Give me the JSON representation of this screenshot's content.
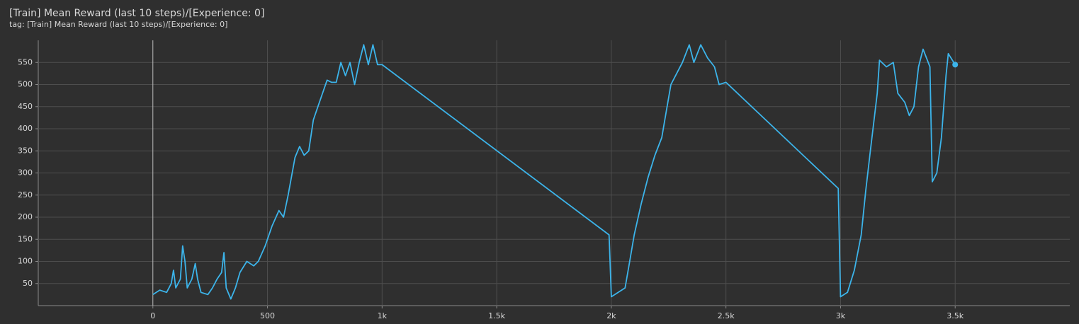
{
  "chart_data": {
    "type": "line",
    "title": "[Train] Mean Reward (last 10 steps)/[Experience: 0]",
    "subtitle": "tag: [Train] Mean Reward (last 10 steps)/[Experience: 0]",
    "color": "#3cb4ea",
    "x": [
      0,
      30,
      60,
      80,
      90,
      100,
      120,
      130,
      140,
      150,
      170,
      185,
      195,
      210,
      240,
      260,
      280,
      300,
      310,
      320,
      340,
      360,
      380,
      410,
      440,
      460,
      490,
      520,
      550,
      570,
      590,
      620,
      640,
      660,
      680,
      700,
      720,
      740,
      760,
      780,
      800,
      820,
      840,
      860,
      880,
      900,
      920,
      940,
      960,
      980,
      1000,
      1990,
      2000,
      2030,
      2060,
      2080,
      2100,
      2130,
      2160,
      2190,
      2220,
      2240,
      2260,
      2290,
      2310,
      2340,
      2360,
      2390,
      2420,
      2450,
      2470,
      2500,
      2990,
      3000,
      3030,
      3060,
      3090,
      3110,
      3130,
      3160,
      3170,
      3200,
      3230,
      3250,
      3280,
      3300,
      3320,
      3340,
      3360,
      3390,
      3400,
      3420,
      3440,
      3460,
      3470,
      3500
    ],
    "values": [
      25,
      35,
      30,
      50,
      80,
      40,
      60,
      135,
      100,
      40,
      60,
      95,
      60,
      30,
      25,
      40,
      60,
      75,
      120,
      40,
      15,
      40,
      75,
      100,
      90,
      100,
      135,
      180,
      215,
      200,
      250,
      335,
      360,
      340,
      350,
      420,
      450,
      480,
      510,
      505,
      505,
      550,
      520,
      550,
      500,
      550,
      590,
      545,
      590,
      545,
      545,
      160,
      20,
      30,
      40,
      100,
      160,
      230,
      290,
      340,
      380,
      440,
      500,
      530,
      550,
      590,
      550,
      590,
      560,
      540,
      500,
      505,
      265,
      20,
      30,
      80,
      160,
      260,
      350,
      480,
      555,
      540,
      550,
      480,
      460,
      430,
      450,
      540,
      580,
      540,
      280,
      300,
      380,
      520,
      570,
      545
    ],
    "xlim": [
      -500,
      4000
    ],
    "ylim": [
      0,
      600
    ],
    "xticks": [
      0,
      500,
      {
        "value": 1000,
        "label": "1k"
      },
      {
        "value": 1500,
        "label": "1.5k"
      },
      {
        "value": 2000,
        "label": "2k"
      },
      {
        "value": 2500,
        "label": "2.5k"
      },
      {
        "value": 3000,
        "label": "3k"
      },
      {
        "value": 3500,
        "label": "3.5k"
      }
    ],
    "yticks": [
      50,
      100,
      150,
      200,
      250,
      300,
      350,
      400,
      450,
      500,
      550
    ],
    "grid": true
  }
}
